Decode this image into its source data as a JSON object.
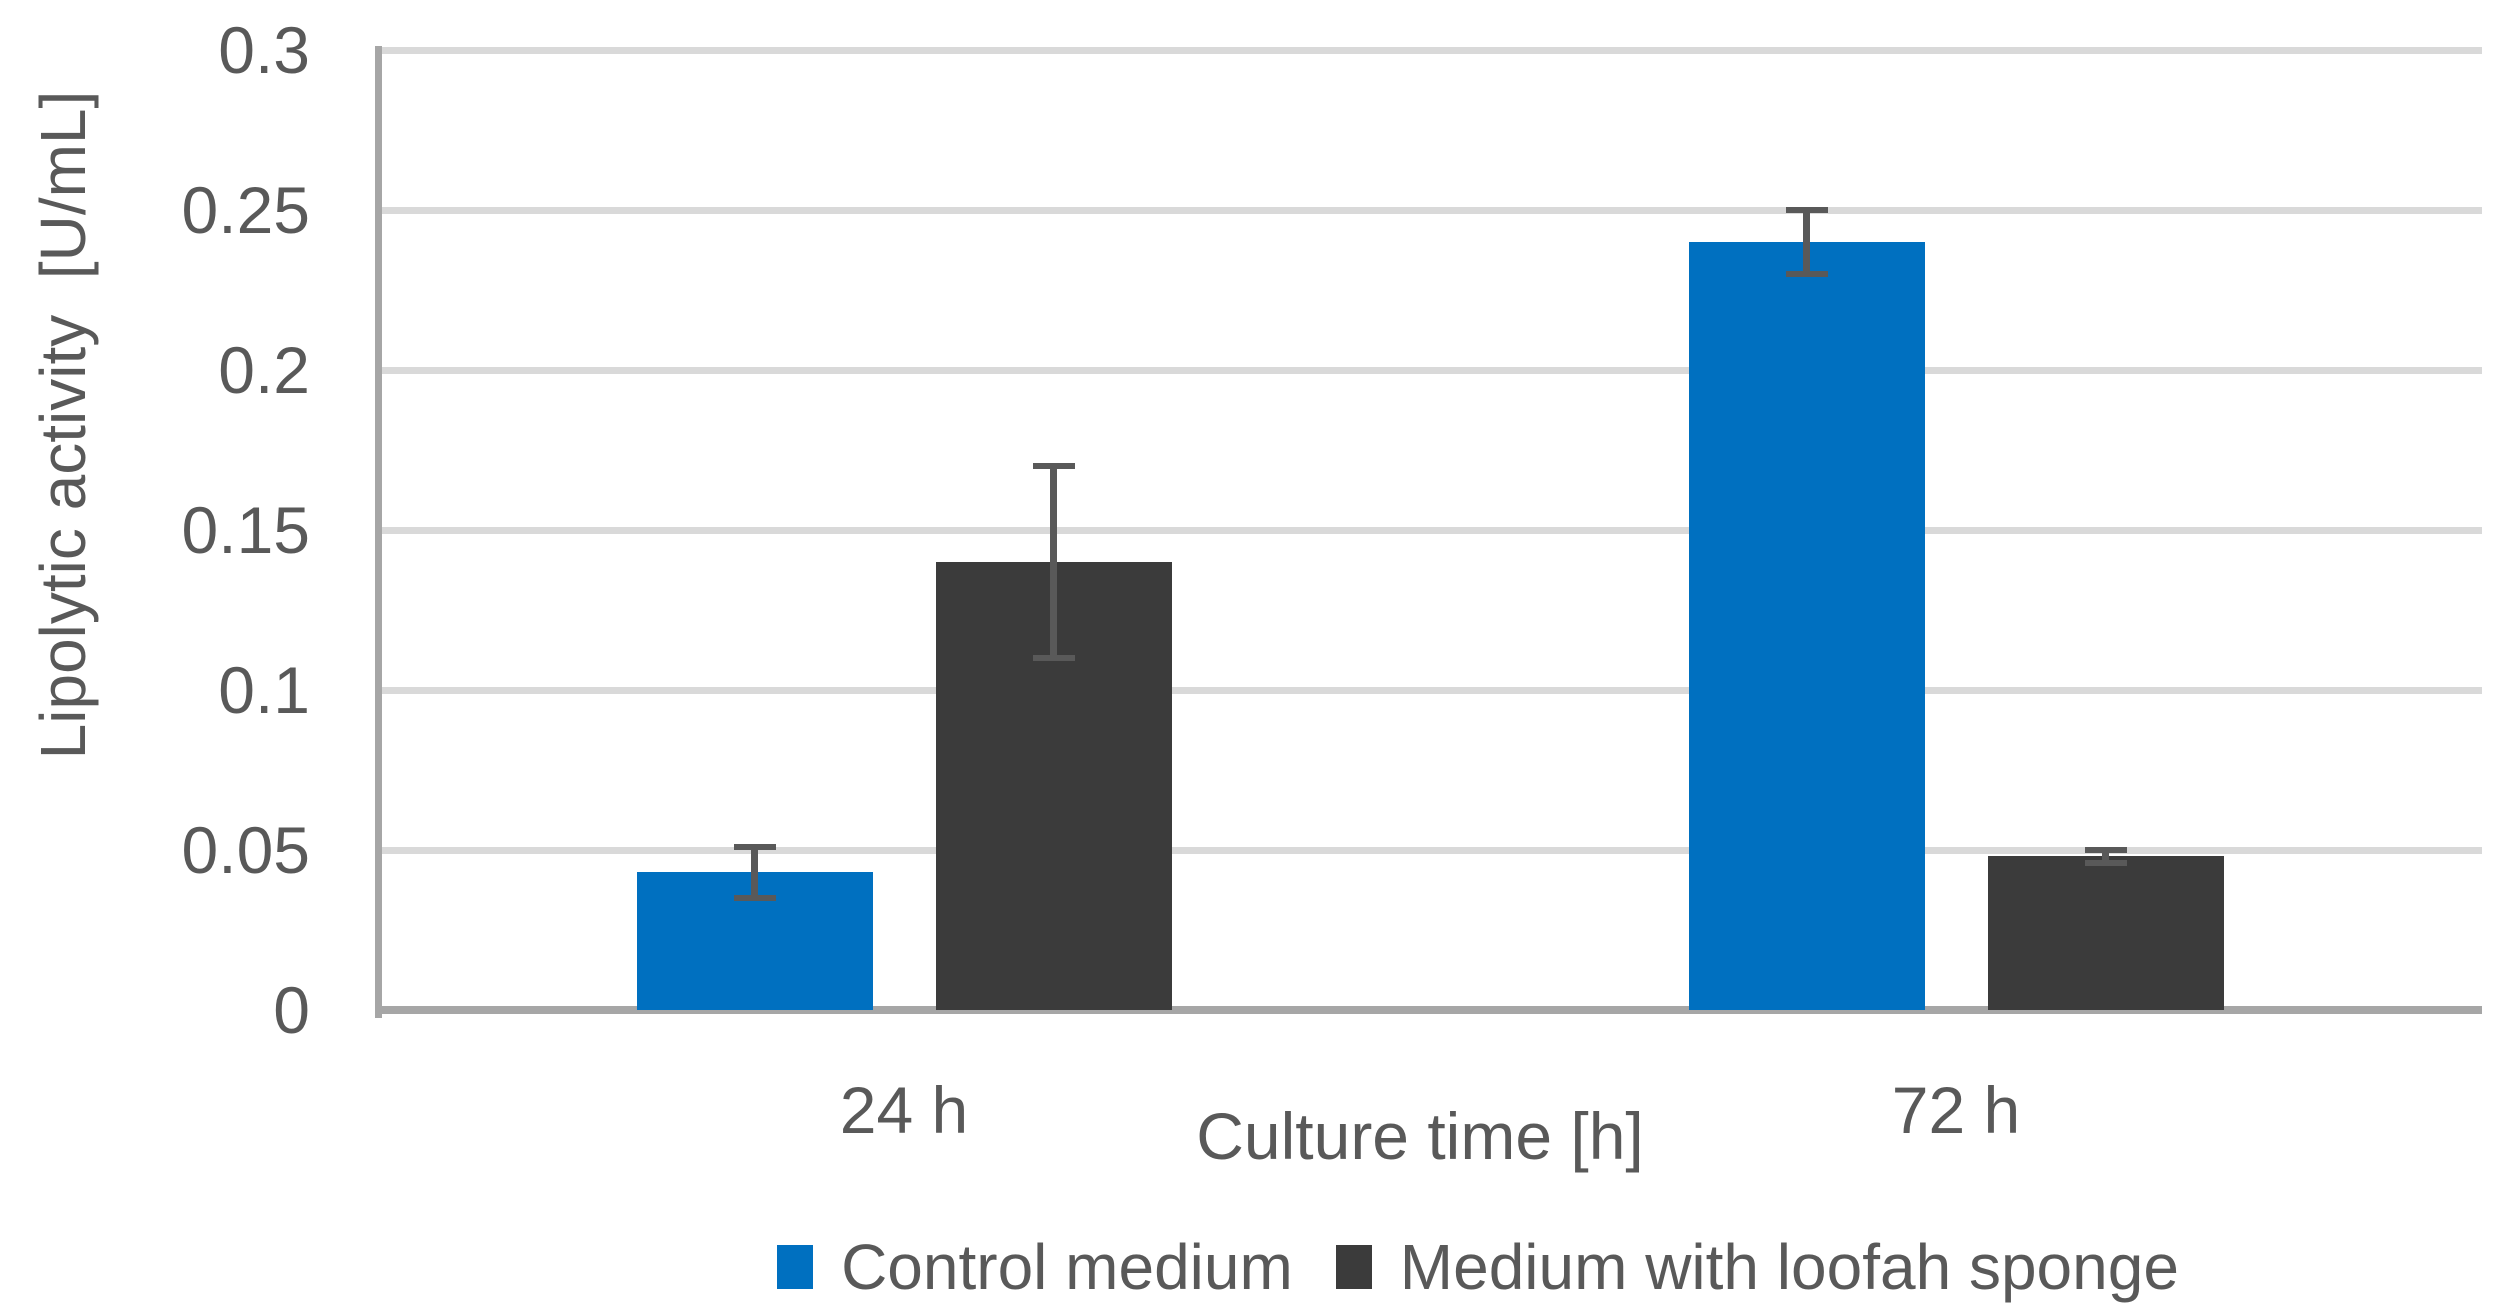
{
  "chart_data": {
    "type": "bar",
    "title": "",
    "categories": [
      "24 h",
      "72 h"
    ],
    "series": [
      {
        "name": "Control medium",
        "color": "#0070C0",
        "values": [
          0.043,
          0.24
        ],
        "errors": [
          0.008,
          0.01
        ]
      },
      {
        "name": "Medium with loofah sponge",
        "color": "#3B3B3B",
        "values": [
          0.14,
          0.048
        ],
        "errors": [
          0.03,
          0.002
        ]
      }
    ],
    "xlabel": "Culture time [h]",
    "ylabel": "Lipolytic activity  [U/mL]",
    "ylim": [
      0,
      0.3
    ],
    "ytick_step": 0.05,
    "ytick_labels": [
      "0",
      "0.05",
      "0.1",
      "0.15",
      "0.2",
      "0.25",
      "0.3"
    ],
    "grid": true,
    "legend_position": "bottom",
    "colors": {
      "error_bar": "#595959",
      "gridline": "#D9D9D9",
      "axis_line": "#A6A6A6",
      "text": "#595959",
      "background": "#FFFFFF"
    }
  }
}
